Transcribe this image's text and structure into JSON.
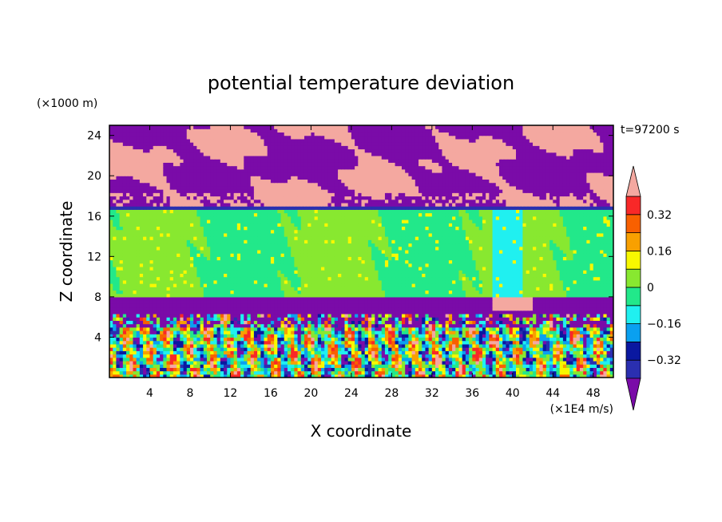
{
  "chart_data": {
    "type": "heatmap",
    "title": "potential temperature deviation",
    "xlabel": "X coordinate",
    "ylabel": "Z coordinate",
    "x_unit": "(×1E4 m/s)",
    "y_unit": "(×1000 m)",
    "time_label": "t=97200 s",
    "xlim": [
      0,
      50
    ],
    "ylim": [
      0,
      25
    ],
    "x_ticks": [
      4,
      8,
      12,
      16,
      20,
      24,
      28,
      32,
      36,
      40,
      44,
      48
    ],
    "y_ticks": [
      4,
      8,
      12,
      16,
      20,
      24
    ],
    "colorbar": {
      "boundaries": [
        -0.4,
        -0.32,
        -0.24,
        -0.16,
        -0.08,
        0,
        0.08,
        0.16,
        0.24,
        0.32,
        0.4
      ],
      "colors": [
        "#7a0ba8",
        "#2a2fb0",
        "#0a18a0",
        "#0aa0f0",
        "#20f0f0",
        "#22e88a",
        "#88e830",
        "#f8f800",
        "#f8a000",
        "#f86000",
        "#f82828",
        "#f4a8a0"
      ],
      "labels": [
        {
          "value": 0.32,
          "text": "0.32"
        },
        {
          "value": 0.16,
          "text": "0.16"
        },
        {
          "value": 0,
          "text": "0"
        },
        {
          "value": -0.16,
          "text": "−0.16"
        },
        {
          "value": -0.32,
          "text": "−0.32"
        }
      ],
      "extend": "both"
    },
    "layers": [
      {
        "z_range": [
          17,
          25
        ],
        "description_levels": [
          -0.4,
          0.4
        ],
        "dominant": "mixed"
      },
      {
        "z_range": [
          16.5,
          17
        ],
        "dominant": -0.32
      },
      {
        "z_range": [
          8,
          16.5
        ],
        "dominant": 0
      },
      {
        "z_range": [
          6,
          8
        ],
        "dominant": -0.4
      },
      {
        "z_range": [
          0,
          6
        ],
        "dominant": "mixed"
      }
    ]
  }
}
